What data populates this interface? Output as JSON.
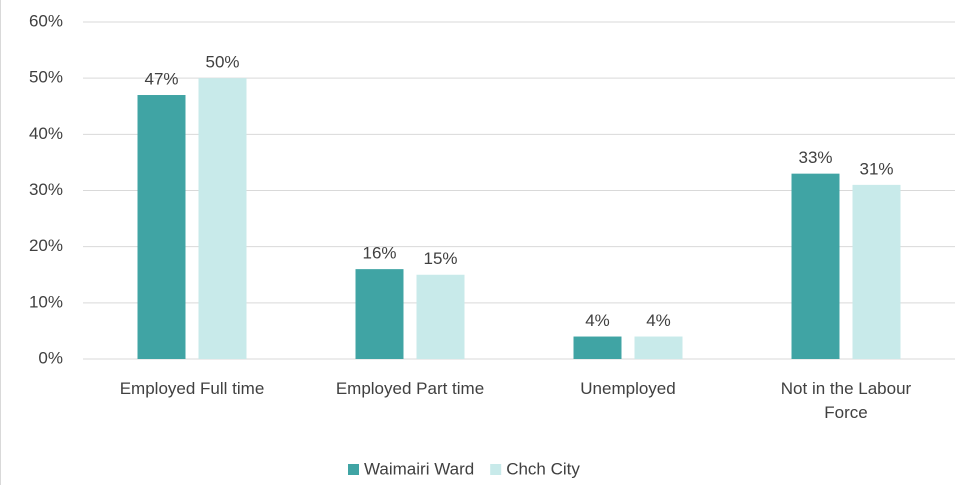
{
  "chart_data": {
    "type": "bar",
    "categories": [
      "Employed Full time",
      "Employed Part time",
      "Unemployed",
      "Not in the Labour Force"
    ],
    "series": [
      {
        "name": "Waimairi Ward",
        "color": "#40a4a4",
        "values": [
          47,
          16,
          4,
          33
        ],
        "value_labels": [
          "47%",
          "16%",
          "4%",
          "33%"
        ]
      },
      {
        "name": "Chch City",
        "color": "#c8eaea",
        "values": [
          50,
          15,
          4,
          31
        ],
        "value_labels": [
          "50%",
          "15%",
          "4%",
          "31%"
        ]
      }
    ],
    "ylim": [
      0,
      60
    ],
    "yticks": [
      {
        "value": 0,
        "label": "0%"
      },
      {
        "value": 10,
        "label": "10%"
      },
      {
        "value": 20,
        "label": "20%"
      },
      {
        "value": 30,
        "label": "30%"
      },
      {
        "value": 40,
        "label": "40%"
      },
      {
        "value": 50,
        "label": "50%"
      },
      {
        "value": 60,
        "label": "60%"
      }
    ],
    "grid": true,
    "legend": "bottom"
  }
}
